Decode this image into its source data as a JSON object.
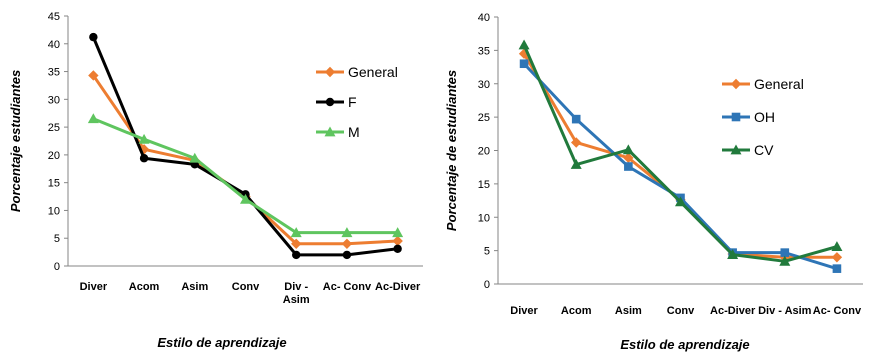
{
  "chart_data": [
    {
      "type": "line",
      "title": "",
      "xlabel": "Estilo de aprendizaje",
      "ylabel": "Porcentaje estudiantes",
      "ylim": [
        0,
        45
      ],
      "yticks": [
        "0",
        "5",
        "10",
        "15",
        "20",
        "25",
        "30",
        "35",
        "40",
        "45"
      ],
      "categories": [
        "Diver",
        "Acom",
        "Asim",
        "Conv",
        "Div - Asim",
        "Ac- Conv",
        "Ac-Diver"
      ],
      "legend_position": "right",
      "grid": false,
      "series": [
        {
          "name": "General",
          "color": "#ED7D31",
          "marker": "diamond",
          "values": [
            34.3,
            21.0,
            19.0,
            12.5,
            4.0,
            4.0,
            4.5
          ]
        },
        {
          "name": "F",
          "color": "#000000",
          "marker": "circle",
          "values": [
            41.2,
            19.4,
            18.3,
            12.9,
            2.0,
            2.0,
            3.1
          ]
        },
        {
          "name": "M",
          "color": "#5FC55F",
          "marker": "triangle",
          "values": [
            26.5,
            22.8,
            19.4,
            12.0,
            6.0,
            6.0,
            6.0
          ]
        }
      ]
    },
    {
      "type": "line",
      "title": "",
      "xlabel": "Estilo de aprendizaje",
      "ylabel": "Porcentaje de estudiantes",
      "ylim": [
        0,
        40
      ],
      "yticks": [
        "0",
        "5",
        "10",
        "15",
        "20",
        "25",
        "30",
        "35",
        "40"
      ],
      "categories": [
        "Diver",
        "Acom",
        "Asim",
        "Conv",
        "Ac-Diver",
        "Div - Asim",
        "Ac- Conv"
      ],
      "legend_position": "right",
      "grid": false,
      "series": [
        {
          "name": "General",
          "color": "#ED7D31",
          "marker": "diamond",
          "values": [
            34.5,
            21.2,
            18.9,
            12.6,
            4.5,
            4.0,
            4.0
          ]
        },
        {
          "name": "OH",
          "color": "#2E75B6",
          "marker": "square",
          "values": [
            33.0,
            24.7,
            17.6,
            12.9,
            4.7,
            4.7,
            2.3
          ]
        },
        {
          "name": "CV",
          "color": "#217A3C",
          "marker": "triangle",
          "values": [
            35.8,
            17.9,
            20.1,
            12.3,
            4.4,
            3.4,
            5.6
          ]
        }
      ]
    }
  ]
}
